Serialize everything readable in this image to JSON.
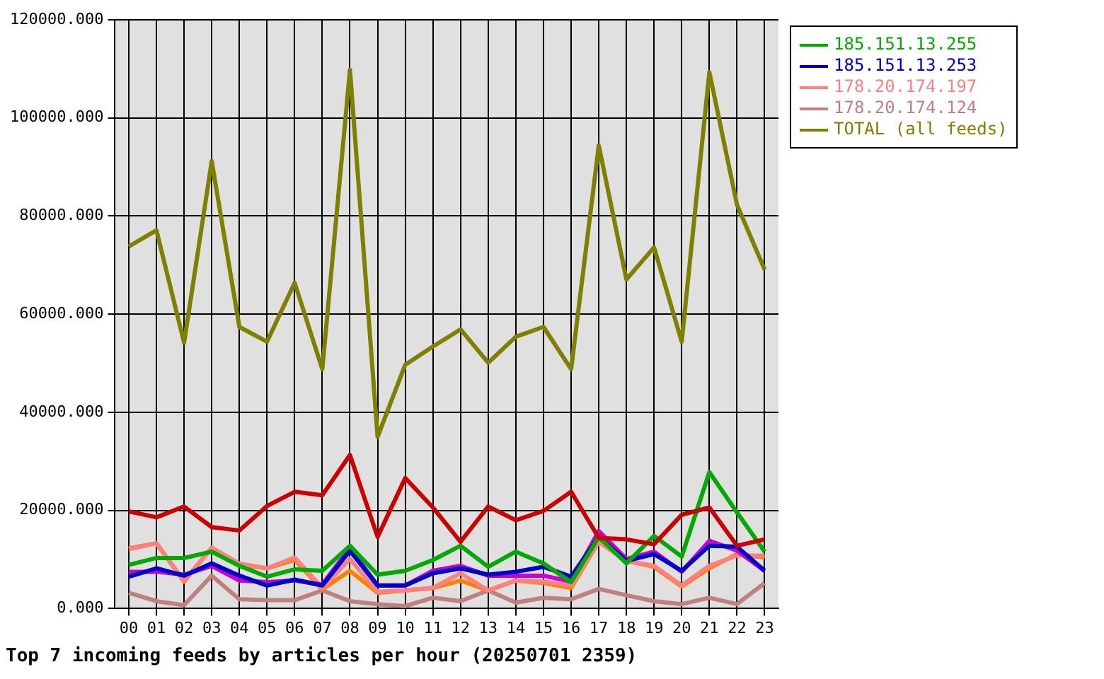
{
  "chart_data": {
    "type": "line",
    "title": "Top 7 incoming feeds by articles per hour (20250701 2359)",
    "categories": [
      "00",
      "01",
      "02",
      "03",
      "04",
      "05",
      "06",
      "07",
      "08",
      "09",
      "10",
      "11",
      "12",
      "13",
      "14",
      "15",
      "16",
      "17",
      "18",
      "19",
      "20",
      "21",
      "22",
      "23"
    ],
    "series": [
      {
        "color": "#cc0000",
        "values": [
          19800,
          18600,
          20800,
          16600,
          15900,
          20900,
          23800,
          23100,
          31300,
          14600,
          26600,
          20600,
          13600,
          20800,
          18000,
          19900,
          23800,
          14400,
          14100,
          13100,
          19100,
          20600,
          12800,
          14100
        ]
      },
      {
        "name": "185.151.13.255",
        "color": "#00aa00",
        "values": [
          8900,
          10300,
          10300,
          11600,
          8700,
          6500,
          8000,
          7700,
          12800,
          6900,
          7700,
          9900,
          12800,
          8500,
          11600,
          9200,
          5400,
          14600,
          9200,
          14800,
          10600,
          27800,
          19600,
          11600
        ]
      },
      {
        "name": "185.151.13.253",
        "color": "#0000cc",
        "values": [
          6500,
          8200,
          6700,
          9200,
          6700,
          4700,
          5900,
          4700,
          11800,
          4700,
          4700,
          7200,
          8200,
          6900,
          7500,
          8500,
          6500,
          14600,
          9700,
          11100,
          7700,
          12800,
          12600,
          7700
        ]
      },
      {
        "color": "#cc00cc",
        "values": [
          7500,
          7500,
          6900,
          8700,
          5700,
          5400,
          5700,
          4900,
          12400,
          4700,
          4700,
          7700,
          8700,
          6700,
          6700,
          6700,
          5500,
          15800,
          10100,
          11600,
          7500,
          13800,
          11800,
          7700
        ]
      },
      {
        "name": "178.20.174.197",
        "color": "#ff8080",
        "values": [
          12100,
          13300,
          5700,
          12400,
          9200,
          8200,
          10400,
          4200,
          10100,
          3400,
          3700,
          4200,
          7200,
          3700,
          5700,
          5500,
          4700,
          13600,
          9700,
          8700,
          4700,
          8700,
          10800,
          10800
        ]
      },
      {
        "color": "#ff8000",
        "values": [
          12300,
          13300,
          5500,
          12400,
          8900,
          8200,
          9900,
          3900,
          7700,
          3200,
          3700,
          4200,
          5700,
          3700,
          5700,
          5200,
          4200,
          13600,
          9700,
          8500,
          4500,
          8200,
          11100,
          10400
        ]
      },
      {
        "name": "178.20.174.124",
        "color": "#c08080",
        "values": [
          3200,
          1500,
          700,
          6700,
          1900,
          1700,
          1700,
          3700,
          1500,
          900,
          500,
          2200,
          1500,
          3700,
          1200,
          2200,
          1900,
          4000,
          2700,
          1500,
          900,
          2200,
          900,
          5200
        ]
      },
      {
        "name": "TOTAL (all feeds)",
        "color": "#808000",
        "values": [
          73800,
          77100,
          54200,
          91200,
          57400,
          54400,
          66400,
          48800,
          109800,
          35000,
          49700,
          53400,
          56900,
          50100,
          55400,
          57400,
          48800,
          94400,
          67100,
          73600,
          54400,
          109300,
          82300,
          69100
        ]
      }
    ],
    "ylim": [
      0,
      120000
    ],
    "yticks": [
      {
        "value": 0,
        "label": "0.000"
      },
      {
        "value": 20000,
        "label": "20000.000"
      },
      {
        "value": 40000,
        "label": "40000.000"
      },
      {
        "value": 60000,
        "label": "60000.000"
      },
      {
        "value": 80000,
        "label": "80000.000"
      },
      {
        "value": 100000,
        "label": "100000.000"
      },
      {
        "value": 120000,
        "label": "120000.000"
      }
    ],
    "grid": true,
    "legend": "right",
    "marker": "none",
    "line_style": "solid"
  }
}
